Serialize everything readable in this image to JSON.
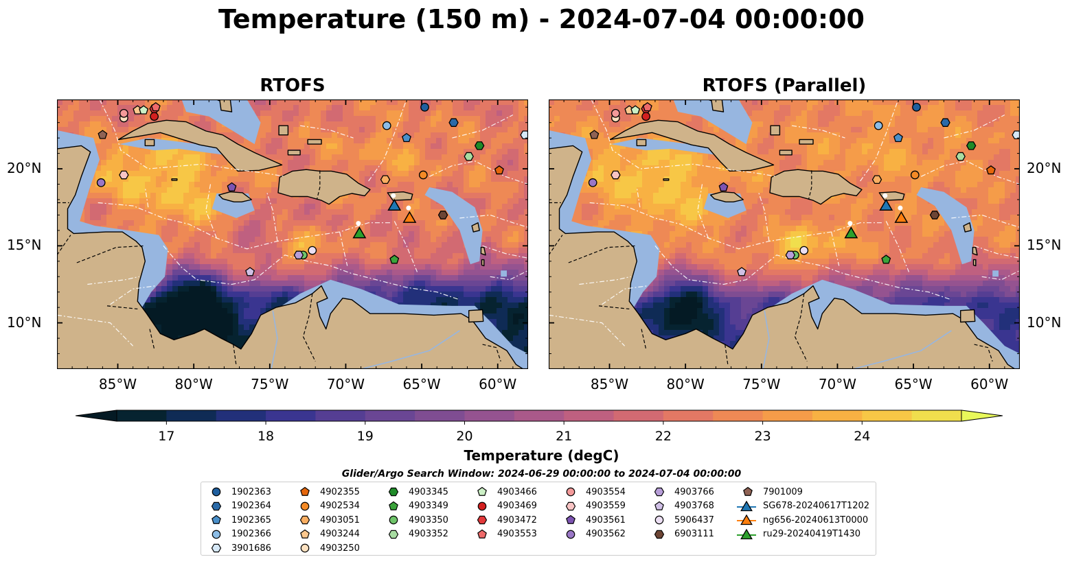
{
  "figure": {
    "title": "Temperature (150 m) - 2024-07-04 00:00:00",
    "panels": [
      {
        "title": "RTOFS",
        "variant": "ctrl"
      },
      {
        "title": "RTOFS (Parallel)",
        "variant": "para"
      }
    ],
    "map_extent": {
      "lon_min": -89,
      "lon_max": -58,
      "lat_min": 7,
      "lat_max": 24.5
    },
    "lon_ticks": [
      {
        "value": -85,
        "label": "85°W"
      },
      {
        "value": -80,
        "label": "80°W"
      },
      {
        "value": -75,
        "label": "75°W"
      },
      {
        "value": -70,
        "label": "70°W"
      },
      {
        "value": -65,
        "label": "65°W"
      },
      {
        "value": -60,
        "label": "60°W"
      }
    ],
    "lat_ticks": [
      {
        "value": 20,
        "label": "20°N"
      },
      {
        "value": 15,
        "label": "15°N"
      },
      {
        "value": 10,
        "label": "10°N"
      }
    ],
    "colors": {
      "land": "#cfb38a",
      "shelf": "#97b6e0",
      "cold": "#06222f",
      "warm": "#e6f75b"
    }
  },
  "colorbar": {
    "label": "Temperature (degC)",
    "min": 16.5,
    "max": 24.5,
    "step": 0.5,
    "ticks": [
      "17",
      "18",
      "19",
      "20",
      "21",
      "22",
      "23",
      "24"
    ],
    "tick_values": [
      17,
      18,
      19,
      20,
      21,
      22,
      23,
      24
    ],
    "colors": [
      "#062330",
      "#0f2b55",
      "#22307a",
      "#3a3590",
      "#553e93",
      "#6a4694",
      "#7f4d92",
      "#955390",
      "#aa598a",
      "#bf6080",
      "#d26a72",
      "#e37864",
      "#ee8955",
      "#f59c49",
      "#f8b143",
      "#f7c746",
      "#f0de4d"
    ],
    "extend_low": "#041a24",
    "extend_high": "#e8f85a"
  },
  "search_window": "Glider/Argo Search Window: 2024-06-29 00:00:00 to 2024-07-04 00:00:00",
  "legend": {
    "columns": [
      [
        {
          "label": "1902363",
          "marker": "circle",
          "color": "#1f5f9f"
        },
        {
          "label": "1902364",
          "marker": "hexagon",
          "color": "#2a6aa8"
        },
        {
          "label": "1902365",
          "marker": "pentagon",
          "color": "#4a8fc9"
        },
        {
          "label": "1902366",
          "marker": "circle",
          "color": "#8cbde6"
        },
        {
          "label": "3901686",
          "marker": "hexagon",
          "color": "#d6e8f7"
        }
      ],
      [
        {
          "label": "4902355",
          "marker": "pentagon",
          "color": "#e5660c"
        },
        {
          "label": "4902534",
          "marker": "circle",
          "color": "#f48a26"
        },
        {
          "label": "4903051",
          "marker": "hexagon",
          "color": "#f9ae62"
        },
        {
          "label": "4903244",
          "marker": "pentagon",
          "color": "#fcc88e"
        },
        {
          "label": "4903250",
          "marker": "circle",
          "color": "#fde1c0"
        }
      ],
      [
        {
          "label": "4903345",
          "marker": "hexagon",
          "color": "#1f8a28"
        },
        {
          "label": "4903349",
          "marker": "pentagon",
          "color": "#3ba33b"
        },
        {
          "label": "4903350",
          "marker": "circle",
          "color": "#6fc46a"
        },
        {
          "label": "4903352",
          "marker": "hexagon",
          "color": "#a8dca2"
        }
      ],
      [
        {
          "label": "4903466",
          "marker": "pentagon",
          "color": "#ccf0c6"
        },
        {
          "label": "4903469",
          "marker": "circle",
          "color": "#d3201f"
        },
        {
          "label": "4903472",
          "marker": "hexagon",
          "color": "#e2393b"
        },
        {
          "label": "4903553",
          "marker": "pentagon",
          "color": "#ee6a6a"
        }
      ],
      [
        {
          "label": "4903554",
          "marker": "circle",
          "color": "#f39a9a"
        },
        {
          "label": "4903559",
          "marker": "hexagon",
          "color": "#f8c4c4"
        },
        {
          "label": "4903561",
          "marker": "pentagon",
          "color": "#7d54b2"
        },
        {
          "label": "4903562",
          "marker": "circle",
          "color": "#9a77c6"
        }
      ],
      [
        {
          "label": "4903766",
          "marker": "hexagon",
          "color": "#b79ed8"
        },
        {
          "label": "4903768",
          "marker": "pentagon",
          "color": "#d0c0e6"
        },
        {
          "label": "5906437",
          "marker": "circle",
          "color": "#ecdff3"
        },
        {
          "label": "6903111",
          "marker": "hexagon",
          "color": "#6d4535"
        }
      ],
      [
        {
          "label": "7901009",
          "marker": "pentagon",
          "color": "#8f6254"
        },
        {
          "label": "SG678-20240617T1202",
          "marker": "triangle",
          "color": "#1f77b4",
          "line": true
        },
        {
          "label": "ng656-20240613T0000",
          "marker": "triangle",
          "color": "#ff7f0e",
          "line": true
        },
        {
          "label": "ru29-20240419T1430",
          "marker": "triangle",
          "color": "#2ca02c",
          "line": true
        }
      ]
    ]
  },
  "floats": [
    {
      "marker": "circle",
      "color": "#1f5f9f",
      "lon": -64.8,
      "lat": 24.0
    },
    {
      "marker": "hexagon",
      "color": "#2a6aa8",
      "lon": -62.9,
      "lat": 23.0
    },
    {
      "marker": "pentagon",
      "color": "#4a8fc9",
      "lon": -66.0,
      "lat": 22.0
    },
    {
      "marker": "circle",
      "color": "#8cbde6",
      "lon": -67.3,
      "lat": 22.8
    },
    {
      "marker": "hexagon",
      "color": "#d6e8f7",
      "lon": -58.2,
      "lat": 22.2
    },
    {
      "marker": "pentagon",
      "color": "#e5660c",
      "lon": -59.9,
      "lat": 19.9
    },
    {
      "marker": "circle",
      "color": "#f48a26",
      "lon": -64.9,
      "lat": 19.6
    },
    {
      "marker": "hexagon",
      "color": "#f9ae62",
      "lon": -67.4,
      "lat": 19.3
    },
    {
      "marker": "pentagon",
      "color": "#fcc88e",
      "lon": -83.7,
      "lat": 23.8
    },
    {
      "marker": "circle",
      "color": "#fde1c0",
      "lon": -84.6,
      "lat": 23.3
    },
    {
      "marker": "hexagon",
      "color": "#1f8a28",
      "lon": -61.2,
      "lat": 21.5
    },
    {
      "marker": "pentagon",
      "color": "#3ba33b",
      "lon": -66.8,
      "lat": 14.1
    },
    {
      "marker": "circle",
      "color": "#6fc46a",
      "lon": -72.8,
      "lat": 14.4
    },
    {
      "marker": "hexagon",
      "color": "#a8dca2",
      "lon": -61.9,
      "lat": 20.8
    },
    {
      "marker": "pentagon",
      "color": "#ccf0c6",
      "lon": -83.3,
      "lat": 23.8
    },
    {
      "marker": "circle",
      "color": "#d3201f",
      "lon": -82.6,
      "lat": 23.4
    },
    {
      "marker": "hexagon",
      "color": "#e2393b",
      "lon": -82.6,
      "lat": 23.9
    },
    {
      "marker": "pentagon",
      "color": "#ee6a6a",
      "lon": -82.5,
      "lat": 24.0
    },
    {
      "marker": "circle",
      "color": "#f39a9a",
      "lon": -84.6,
      "lat": 23.6
    },
    {
      "marker": "hexagon",
      "color": "#f8c4c4",
      "lon": -84.6,
      "lat": 19.6
    },
    {
      "marker": "pentagon",
      "color": "#7d54b2",
      "lon": -77.5,
      "lat": 18.8
    },
    {
      "marker": "circle",
      "color": "#9a77c6",
      "lon": -86.1,
      "lat": 19.1
    },
    {
      "marker": "hexagon",
      "color": "#b79ed8",
      "lon": -73.1,
      "lat": 14.4
    },
    {
      "marker": "pentagon",
      "color": "#d0c0e6",
      "lon": -76.3,
      "lat": 13.3
    },
    {
      "marker": "circle",
      "color": "#ecdff3",
      "lon": -72.2,
      "lat": 14.7
    },
    {
      "marker": "hexagon",
      "color": "#6d4535",
      "lon": -63.6,
      "lat": 17.0
    },
    {
      "marker": "pentagon",
      "color": "#8f6254",
      "lon": -86.0,
      "lat": 22.2
    }
  ],
  "gliders": [
    {
      "label": "SG678-20240617T1202",
      "color": "#1f77b4",
      "lon": -66.8,
      "lat": 17.5
    },
    {
      "label": "ng656-20240613T0000",
      "color": "#ff7f0e",
      "lon": -65.8,
      "lat": 16.7
    },
    {
      "label": "ru29-20240419T1430",
      "color": "#2ca02c",
      "lon": -69.1,
      "lat": 15.7
    }
  ]
}
